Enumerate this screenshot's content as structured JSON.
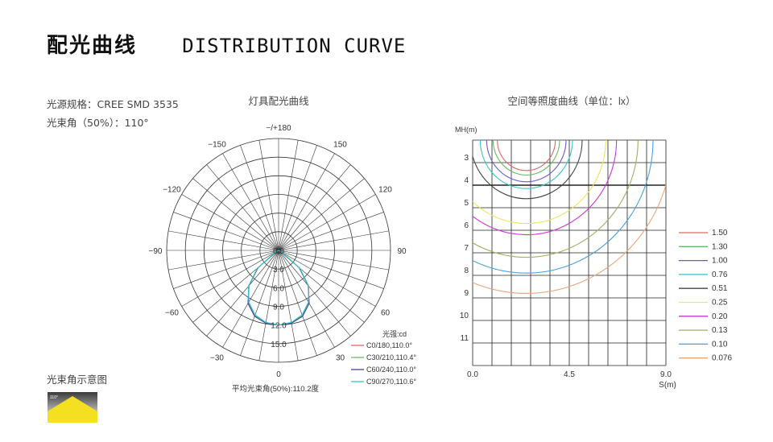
{
  "page": {
    "title_cn": "配光曲线",
    "title_en": "DISTRIBUTION CURVE",
    "light_source": "光源规格：CREE SMD 3535",
    "beam_angle": "光束角（50%）：110°",
    "beam_diagram_label": "光束角示意图",
    "beam_icon_label": "110°"
  },
  "chart_data": [
    {
      "type": "polar",
      "title": "灯具配光曲线",
      "angle_labels": [
        "-/+180",
        "-150",
        "150",
        "-120",
        "120",
        "-90",
        "90",
        "-60",
        "60",
        "-30",
        "30",
        "0"
      ],
      "radial_ticks": [
        "0.0",
        "3.0",
        "6.0",
        "9.0",
        "12.0",
        "15.0"
      ],
      "radial_max": 15,
      "unit_label": "光强:cd",
      "footer": "平均光束角(50%):110.2度",
      "series": [
        {
          "name": "C0/180,110.0°",
          "color": "#e06666",
          "angles": [
            -60,
            -50,
            -40,
            -30,
            -20,
            -10,
            0,
            10,
            20,
            30,
            40,
            50,
            60
          ],
          "values": [
            0.4,
            3.6,
            6.2,
            8.1,
            9.3,
            9.9,
            10.0,
            9.9,
            9.3,
            8.1,
            6.2,
            3.6,
            0.4
          ]
        },
        {
          "name": "C30/210,110.4°",
          "color": "#6ab96a",
          "angles": [
            -60,
            -50,
            -40,
            -30,
            -20,
            -10,
            0,
            10,
            20,
            30,
            40,
            50,
            60
          ],
          "values": [
            0.5,
            3.7,
            6.3,
            8.1,
            9.3,
            9.9,
            10.0,
            9.9,
            9.3,
            8.1,
            6.3,
            3.7,
            0.5
          ]
        },
        {
          "name": "C60/240,110.0°",
          "color": "#4040a0",
          "angles": [
            -60,
            -50,
            -40,
            -30,
            -20,
            -10,
            0,
            10,
            20,
            30,
            40,
            50,
            60
          ],
          "values": [
            0.4,
            3.6,
            6.2,
            8.2,
            9.4,
            9.9,
            10.0,
            9.9,
            9.4,
            8.2,
            6.2,
            3.6,
            0.4
          ]
        },
        {
          "name": "C90/270,110.6°",
          "color": "#33c4cc",
          "angles": [
            -60,
            -50,
            -40,
            -30,
            -20,
            -10,
            0,
            10,
            20,
            30,
            40,
            50,
            60
          ],
          "values": [
            0.5,
            3.7,
            6.3,
            8.0,
            9.2,
            9.8,
            10.0,
            9.8,
            9.2,
            8.0,
            6.3,
            3.7,
            0.5
          ]
        }
      ]
    },
    {
      "type": "line",
      "title": "空间等照度曲线（单位：lx）",
      "xlabel": "S(m)",
      "ylabel": "MH(m)",
      "x_ticks": [
        "0.0",
        "4.5",
        "9.0"
      ],
      "x_range": [
        0,
        9
      ],
      "y_range": [
        2,
        12
      ],
      "y_ticks": [
        "3",
        "4",
        "5",
        "6",
        "7",
        "8",
        "9",
        "10",
        "11"
      ],
      "grid": true,
      "legend_position": "right",
      "series": [
        {
          "name": "1.50",
          "color": "#e06666",
          "radius": 1.35
        },
        {
          "name": "1.30",
          "color": "#6ab96a",
          "radius": 1.55
        },
        {
          "name": "1.00",
          "color": "#6a5ac8",
          "radius": 1.85
        },
        {
          "name": "0.76",
          "color": "#33c4cc",
          "radius": 2.15
        },
        {
          "name": "0.51",
          "color": "#444444",
          "radius": 2.6
        },
        {
          "name": "0.25",
          "color": "#e8e85a",
          "radius": 3.7
        },
        {
          "name": "0.20",
          "color": "#cc33cc",
          "radius": 4.2
        },
        {
          "name": "0.13",
          "color": "#a0b060",
          "radius": 5.2
        },
        {
          "name": "0.10",
          "color": "#4aa0dd",
          "radius": 5.9
        },
        {
          "name": "0.076",
          "color": "#eba57a",
          "radius": 6.8
        }
      ]
    }
  ]
}
